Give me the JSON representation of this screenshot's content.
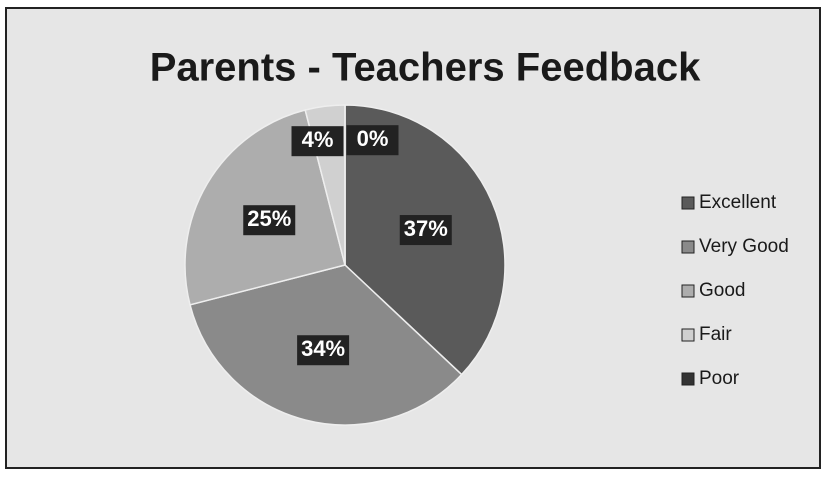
{
  "chart_data": {
    "type": "pie",
    "title": "Parents - Teachers Feedback",
    "categories": [
      "Excellent",
      "Very Good",
      "Good",
      "Fair",
      "Poor"
    ],
    "values": [
      37,
      34,
      25,
      4,
      0
    ],
    "value_labels": [
      "37%",
      "34%",
      "25%",
      "4%",
      "0%"
    ],
    "colors": [
      "#5a5a5a",
      "#8a8a8a",
      "#adadad",
      "#d0d0d0",
      "#333333"
    ],
    "legend": "right"
  }
}
